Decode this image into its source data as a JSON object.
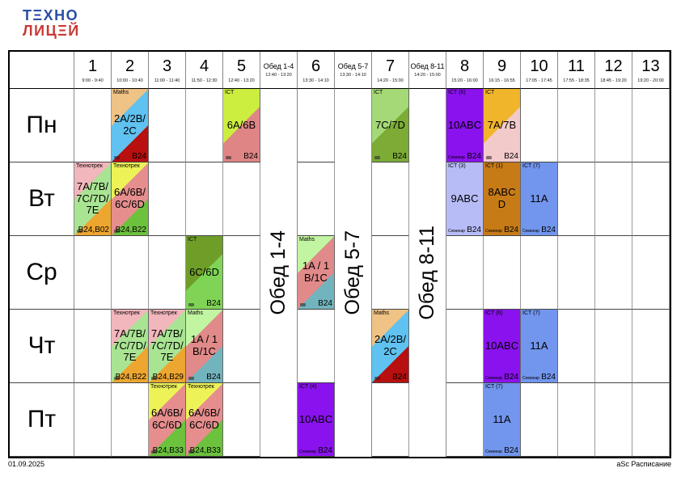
{
  "logo": {
    "line1": "ТΞХНО",
    "line2": "ЛИЦΞЙ",
    "color1": "#2b4ea4",
    "color2": "#c93a34"
  },
  "footer": {
    "left": "01.09.2025",
    "right": "aSc Расписание"
  },
  "days": [
    "Пн",
    "Вт",
    "Ср",
    "Чт",
    "Пт"
  ],
  "columns": [
    {
      "id": "p1",
      "label": "1",
      "time": "9:00 - 9:40",
      "lunch": false
    },
    {
      "id": "p2",
      "label": "2",
      "time": "10:00 - 10:40",
      "lunch": false
    },
    {
      "id": "p3",
      "label": "3",
      "time": "11:00 - 11:40",
      "lunch": false
    },
    {
      "id": "p4",
      "label": "4",
      "time": "11:50 - 12:30",
      "lunch": false
    },
    {
      "id": "p5",
      "label": "5",
      "time": "12:40 - 13:20",
      "lunch": false
    },
    {
      "id": "l14",
      "label": "Обед 1-4",
      "time": "12:40 - 13:20",
      "lunch": true
    },
    {
      "id": "p6",
      "label": "6",
      "time": "13:30 - 14:10",
      "lunch": false
    },
    {
      "id": "l57",
      "label": "Обед 5-7",
      "time": "13:30 - 14:10",
      "lunch": true
    },
    {
      "id": "p7",
      "label": "7",
      "time": "14:20 - 15:00",
      "lunch": false
    },
    {
      "id": "l811",
      "label": "Обед 8-11",
      "time": "14:20 - 15:00",
      "lunch": true
    },
    {
      "id": "p8",
      "label": "8",
      "time": "15:20 - 16:00",
      "lunch": false
    },
    {
      "id": "p9",
      "label": "9",
      "time": "16:15 - 16:55",
      "lunch": false
    },
    {
      "id": "p10",
      "label": "10",
      "time": "17:05 - 17:45",
      "lunch": false
    },
    {
      "id": "p11",
      "label": "11",
      "time": "17:55 - 18:35",
      "lunch": false
    },
    {
      "id": "p12",
      "label": "12",
      "time": "18:45 - 19:20",
      "lunch": false
    },
    {
      "id": "p13",
      "label": "13",
      "time": "19:20 - 20:00",
      "lunch": false
    }
  ],
  "lessons": [
    {
      "day": 0,
      "col": "p2",
      "subject": "Maths",
      "group": "2A/2B/2C",
      "room": "B24",
      "corner": "",
      "mark": true,
      "style": "diag3",
      "colors": [
        "#efc285",
        "#5fc2f0",
        "#b80f0f"
      ]
    },
    {
      "day": 0,
      "col": "p5",
      "subject": "ICT",
      "group": "6A/6B",
      "room": "B24",
      "corner": "",
      "mark": true,
      "style": "diag2",
      "colors": [
        "#cbee3f",
        "#e08585"
      ]
    },
    {
      "day": 0,
      "col": "p7",
      "subject": "ICT",
      "group": "7C/7D",
      "room": "B24",
      "corner": "",
      "mark": true,
      "style": "diag2",
      "colors": [
        "#a5d977",
        "#7cab36"
      ]
    },
    {
      "day": 0,
      "col": "p8",
      "subject": "ICT (6)",
      "group": "10ABC",
      "room": "B24",
      "corner": "Семинар",
      "mark": false,
      "style": "solid",
      "colors": [
        "#8a12ee"
      ]
    },
    {
      "day": 0,
      "col": "p9",
      "subject": "ICT",
      "group": "7A/7B",
      "room": "B24",
      "corner": "",
      "mark": true,
      "style": "diag2",
      "colors": [
        "#f1b52c",
        "#f3caca"
      ]
    },
    {
      "day": 1,
      "col": "p1",
      "subject": "Технотрек",
      "group": "7A/7B/7C/7D/7E",
      "room": "B24,B02",
      "corner": "",
      "mark": true,
      "style": "diag3",
      "colors": [
        "#f2b6bd",
        "#a9e493",
        "#eda630"
      ]
    },
    {
      "day": 1,
      "col": "p2",
      "subject": "Технотрек",
      "group": "6A/6B/6C/6D",
      "room": "B24,B22",
      "corner": "",
      "mark": true,
      "style": "diag3",
      "colors": [
        "#edf257",
        "#e68e8e",
        "#6cc13d"
      ]
    },
    {
      "day": 1,
      "col": "p8",
      "subject": "ICT (3)",
      "group": "9ABC",
      "room": "B24",
      "corner": "Семинар",
      "mark": false,
      "style": "solid",
      "colors": [
        "#b7bcf7"
      ]
    },
    {
      "day": 1,
      "col": "p9",
      "subject": "ICT (1)",
      "group": "8ABCD",
      "room": "B24",
      "corner": "Семинар",
      "mark": false,
      "style": "solid",
      "colors": [
        "#c67b17"
      ]
    },
    {
      "day": 1,
      "col": "p10",
      "subject": "ICT (7)",
      "group": "11A",
      "room": "B24",
      "corner": "Семинар",
      "mark": false,
      "style": "solid",
      "colors": [
        "#7296ee"
      ]
    },
    {
      "day": 2,
      "col": "p4",
      "subject": "ICT",
      "group": "6C/6D",
      "room": "B24",
      "corner": "",
      "mark": true,
      "style": "diag2",
      "colors": [
        "#6f9e28",
        "#80d455"
      ]
    },
    {
      "day": 2,
      "col": "p6",
      "subject": "Maths",
      "group": "1A / 1B/1C",
      "room": "B24",
      "corner": "",
      "mark": true,
      "style": "diag3",
      "colors": [
        "#c2f5a1",
        "#e18a8a",
        "#72b4bd"
      ]
    },
    {
      "day": 3,
      "col": "p2",
      "subject": "Технотрек",
      "group": "7A/7B/7C/7D/7E",
      "room": "B24,B22",
      "corner": "",
      "mark": true,
      "style": "diag3",
      "colors": [
        "#f2b6bd",
        "#a9e493",
        "#eda630"
      ]
    },
    {
      "day": 3,
      "col": "p3",
      "subject": "Технотрек",
      "group": "7A/7B/7C/7D/7E",
      "room": "B24,B29",
      "corner": "",
      "mark": true,
      "style": "diag3",
      "colors": [
        "#f2b6bd",
        "#a9e493",
        "#eda630"
      ]
    },
    {
      "day": 3,
      "col": "p4",
      "subject": "Maths",
      "group": "1A / 1B/1C",
      "room": "B24",
      "corner": "",
      "mark": true,
      "style": "diag3",
      "colors": [
        "#c2f5a1",
        "#e18a8a",
        "#72b4bd"
      ]
    },
    {
      "day": 3,
      "col": "p7",
      "subject": "Maths",
      "group": "2A/2B/2C",
      "room": "B24",
      "corner": "",
      "mark": true,
      "style": "diag3",
      "colors": [
        "#efc285",
        "#5fc2f0",
        "#b80f0f"
      ]
    },
    {
      "day": 3,
      "col": "p9",
      "subject": "ICT (6)",
      "group": "10ABC",
      "room": "B24",
      "corner": "Семинар",
      "mark": false,
      "style": "solid",
      "colors": [
        "#8a12ee"
      ]
    },
    {
      "day": 3,
      "col": "p10",
      "subject": "ICT (7)",
      "group": "11A",
      "room": "B24",
      "corner": "Семинар",
      "mark": false,
      "style": "solid",
      "colors": [
        "#7296ee"
      ]
    },
    {
      "day": 4,
      "col": "p3",
      "subject": "Технотрек",
      "group": "6A/6B/6C/6D",
      "room": "B24,B33",
      "corner": "",
      "mark": true,
      "style": "diag3",
      "colors": [
        "#edf257",
        "#e68e8e",
        "#6cc13d"
      ]
    },
    {
      "day": 4,
      "col": "p4",
      "subject": "Технотрек",
      "group": "6A/6B/6C/6D",
      "room": "B24,B33",
      "corner": "",
      "mark": true,
      "style": "diag3",
      "colors": [
        "#edf257",
        "#e68e8e",
        "#6cc13d"
      ]
    },
    {
      "day": 4,
      "col": "p6",
      "subject": "ICT (4)",
      "group": "10ABC",
      "room": "B24",
      "corner": "Семинар",
      "mark": false,
      "style": "solid",
      "colors": [
        "#8a12ee"
      ]
    },
    {
      "day": 4,
      "col": "p9",
      "subject": "ICT (7)",
      "group": "11A",
      "room": "B24",
      "corner": "Семинар",
      "mark": false,
      "style": "solid",
      "colors": [
        "#7296ee"
      ]
    }
  ]
}
